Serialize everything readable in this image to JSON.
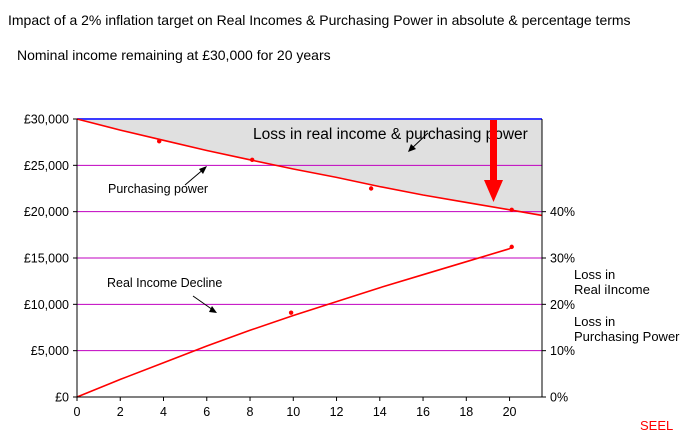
{
  "chart_data": {
    "type": "line",
    "title": "Impact of a 2% inflation target on Real Incomes & Purchasing Power in absolute & percentage terms",
    "subtitle": "Nominal income remaining at £30,000 for 20 years",
    "xlabel": "",
    "ylabel": "",
    "xlim": [
      0,
      21.5
    ],
    "ylim": [
      0,
      30000
    ],
    "x_ticks": [
      "0",
      "2",
      "4",
      "6",
      "8",
      "10",
      "12",
      "14",
      "16",
      "18",
      "20"
    ],
    "y_ticks": [
      "£0",
      "£5,000",
      "£10,000",
      "£15,000",
      "£20,000",
      "£25,000",
      "£30,000"
    ],
    "y2_ticks": [
      "0%",
      "10%",
      "20%",
      "30%",
      "40%"
    ],
    "grid": true,
    "series": [
      {
        "role": "nominal-income",
        "color": "#3a3aff",
        "points": [
          [
            0,
            30000
          ],
          [
            21.5,
            30000
          ]
        ]
      },
      {
        "role": "purchasing-power",
        "color": "#ff0000",
        "points": [
          [
            0,
            30000
          ],
          [
            2,
            28800
          ],
          [
            4,
            27700
          ],
          [
            6,
            26600
          ],
          [
            8,
            25600
          ],
          [
            10,
            24600
          ],
          [
            12,
            23700
          ],
          [
            14,
            22700
          ],
          [
            16,
            21800
          ],
          [
            18,
            21000
          ],
          [
            20,
            20200
          ],
          [
            21.5,
            19600
          ]
        ],
        "markers": [
          [
            3.8,
            27600
          ],
          [
            8.1,
            25600
          ],
          [
            13.6,
            22500
          ],
          [
            20.1,
            20200
          ]
        ]
      },
      {
        "role": "real-income-decline",
        "color": "#ff0000",
        "points": [
          [
            0,
            0
          ],
          [
            2,
            1900
          ],
          [
            4,
            3700
          ],
          [
            6,
            5500
          ],
          [
            8,
            7200
          ],
          [
            10,
            8800
          ],
          [
            12,
            10300
          ],
          [
            14,
            11800
          ],
          [
            16,
            13200
          ],
          [
            18,
            14600
          ],
          [
            20,
            16000
          ],
          [
            20.1,
            16200
          ]
        ],
        "markers": [
          [
            9.9,
            9100
          ],
          [
            20.1,
            16200
          ]
        ]
      }
    ],
    "annotations": [
      {
        "text": "Loss in real income & purchasing power",
        "size": "big"
      },
      {
        "text": "Purchasing power",
        "size": "small"
      },
      {
        "text": "Real Income Decline",
        "size": "small"
      }
    ],
    "right_labels": [
      [
        "Loss in",
        "Real iIncome"
      ],
      [
        "Loss in",
        "Purchasing Power"
      ]
    ],
    "colors": {
      "loss_fill": "#e0e0e0",
      "gridline": "#c000c0",
      "arrow": "#ff0000"
    }
  },
  "credit": "SEEL"
}
